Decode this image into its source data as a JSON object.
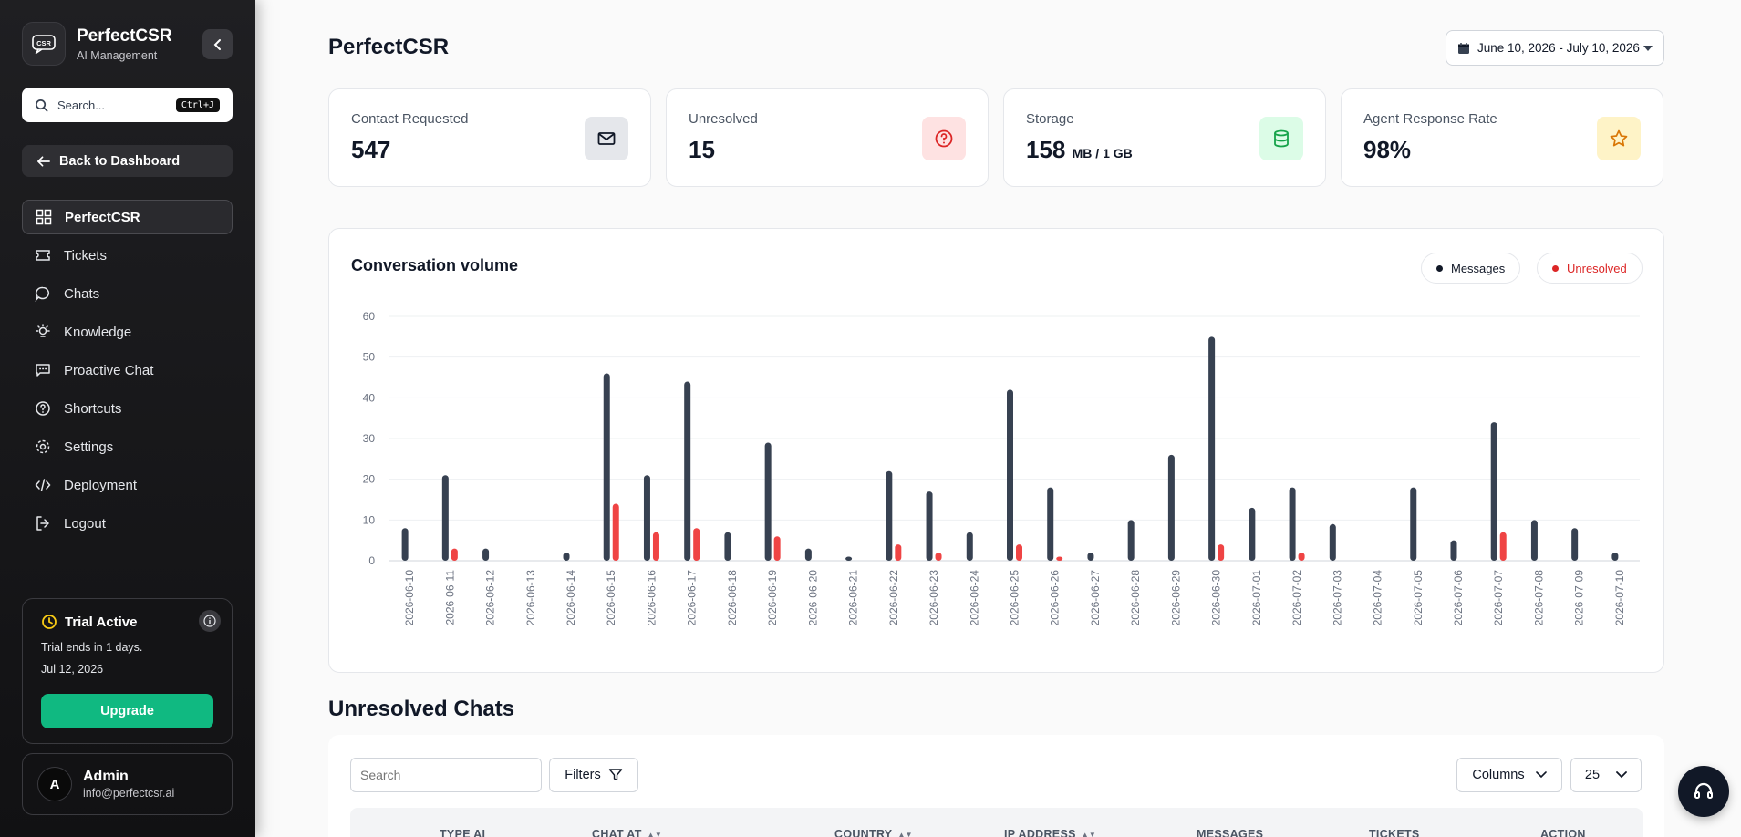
{
  "brand": {
    "name": "PerfectCSR",
    "subtitle": "AI Management",
    "logo_text": "CSR"
  },
  "search": {
    "placeholder": "Search...",
    "shortcut": "Ctrl+J"
  },
  "back_button": "Back to Dashboard",
  "nav": [
    {
      "label": "PerfectCSR",
      "icon": "grid-icon",
      "active": true
    },
    {
      "label": "Tickets",
      "icon": "ticket-icon",
      "active": false
    },
    {
      "label": "Chats",
      "icon": "chat-bubble-icon",
      "active": false
    },
    {
      "label": "Knowledge",
      "icon": "lightbulb-icon",
      "active": false
    },
    {
      "label": "Proactive Chat",
      "icon": "message-square-icon",
      "active": false
    },
    {
      "label": "Shortcuts",
      "icon": "help-circle-icon",
      "active": false
    },
    {
      "label": "Settings",
      "icon": "gear-icon",
      "active": false
    },
    {
      "label": "Deployment",
      "icon": "code-icon",
      "active": false
    },
    {
      "label": "Logout",
      "icon": "logout-icon",
      "active": false
    }
  ],
  "trial": {
    "title": "Trial Active",
    "line": "Trial ends in 1 days.",
    "date": "Jul 12, 2026",
    "upgrade": "Upgrade"
  },
  "user": {
    "initial": "A",
    "name": "Admin",
    "email": "info@perfectcsr.ai"
  },
  "page_title": "PerfectCSR",
  "date_range": "June 10, 2026 - July 10, 2026",
  "stats": [
    {
      "label": "Contact Requested",
      "value": "547",
      "unit": "",
      "icon": "mail-icon",
      "bg": "#e5e7eb",
      "fg": "#111827"
    },
    {
      "label": "Unresolved",
      "value": "15",
      "unit": "",
      "icon": "help-circle-icon",
      "bg": "#fee2e2",
      "fg": "#dc2626"
    },
    {
      "label": "Storage",
      "value": "158",
      "unit": "MB / 1 GB",
      "icon": "database-icon",
      "bg": "#dcfce7",
      "fg": "#16a34a"
    },
    {
      "label": "Agent Response Rate",
      "value": "98%",
      "unit": "",
      "icon": "star-icon",
      "bg": "#fef3c7",
      "fg": "#d97706"
    }
  ],
  "chart_data": {
    "type": "bar",
    "title": "Conversation volume",
    "xlabel": "",
    "ylabel": "",
    "ylim": [
      0,
      60
    ],
    "yticks": [
      0,
      10,
      20,
      30,
      40,
      50,
      60
    ],
    "grid": true,
    "legend_position": "top-right",
    "categories": [
      "2026-06-10",
      "2026-06-11",
      "2026-06-12",
      "2026-06-13",
      "2026-06-14",
      "2026-06-15",
      "2026-06-16",
      "2026-06-17",
      "2026-06-18",
      "2026-06-19",
      "2026-06-20",
      "2026-06-21",
      "2026-06-22",
      "2026-06-23",
      "2026-06-24",
      "2026-06-25",
      "2026-06-26",
      "2026-06-27",
      "2026-06-28",
      "2026-06-29",
      "2026-06-30",
      "2026-07-01",
      "2026-07-02",
      "2026-07-03",
      "2026-07-04",
      "2026-07-05",
      "2026-07-06",
      "2026-07-07",
      "2026-07-08",
      "2026-07-09",
      "2026-07-10"
    ],
    "series": [
      {
        "name": "Messages",
        "color": "#374151",
        "values": [
          8,
          21,
          3,
          0,
          2,
          46,
          21,
          44,
          7,
          29,
          3,
          1,
          22,
          17,
          7,
          42,
          18,
          2,
          10,
          26,
          55,
          13,
          18,
          9,
          0,
          18,
          5,
          34,
          10,
          8,
          2
        ]
      },
      {
        "name": "Unresolved",
        "color": "#ef4444",
        "values": [
          0,
          3,
          0,
          0,
          0,
          14,
          7,
          8,
          0,
          6,
          0,
          0,
          4,
          2,
          0,
          4,
          1,
          0,
          0,
          0,
          4,
          0,
          2,
          0,
          0,
          0,
          0,
          7,
          0,
          0,
          0
        ]
      }
    ]
  },
  "unresolved_section": {
    "title": "Unresolved Chats",
    "search_placeholder": "Search",
    "filters": "Filters",
    "columns": "Columns",
    "page_size": "25",
    "headers": [
      {
        "label": "TYPE AI",
        "sortable": false
      },
      {
        "label": "CHAT AT",
        "sortable": true
      },
      {
        "label": "COUNTRY",
        "sortable": true
      },
      {
        "label": "IP ADDRESS",
        "sortable": true
      },
      {
        "label": "MESSAGES",
        "sortable": false
      },
      {
        "label": "TICKETS",
        "sortable": false
      },
      {
        "label": "ACTION",
        "sortable": false
      }
    ]
  }
}
